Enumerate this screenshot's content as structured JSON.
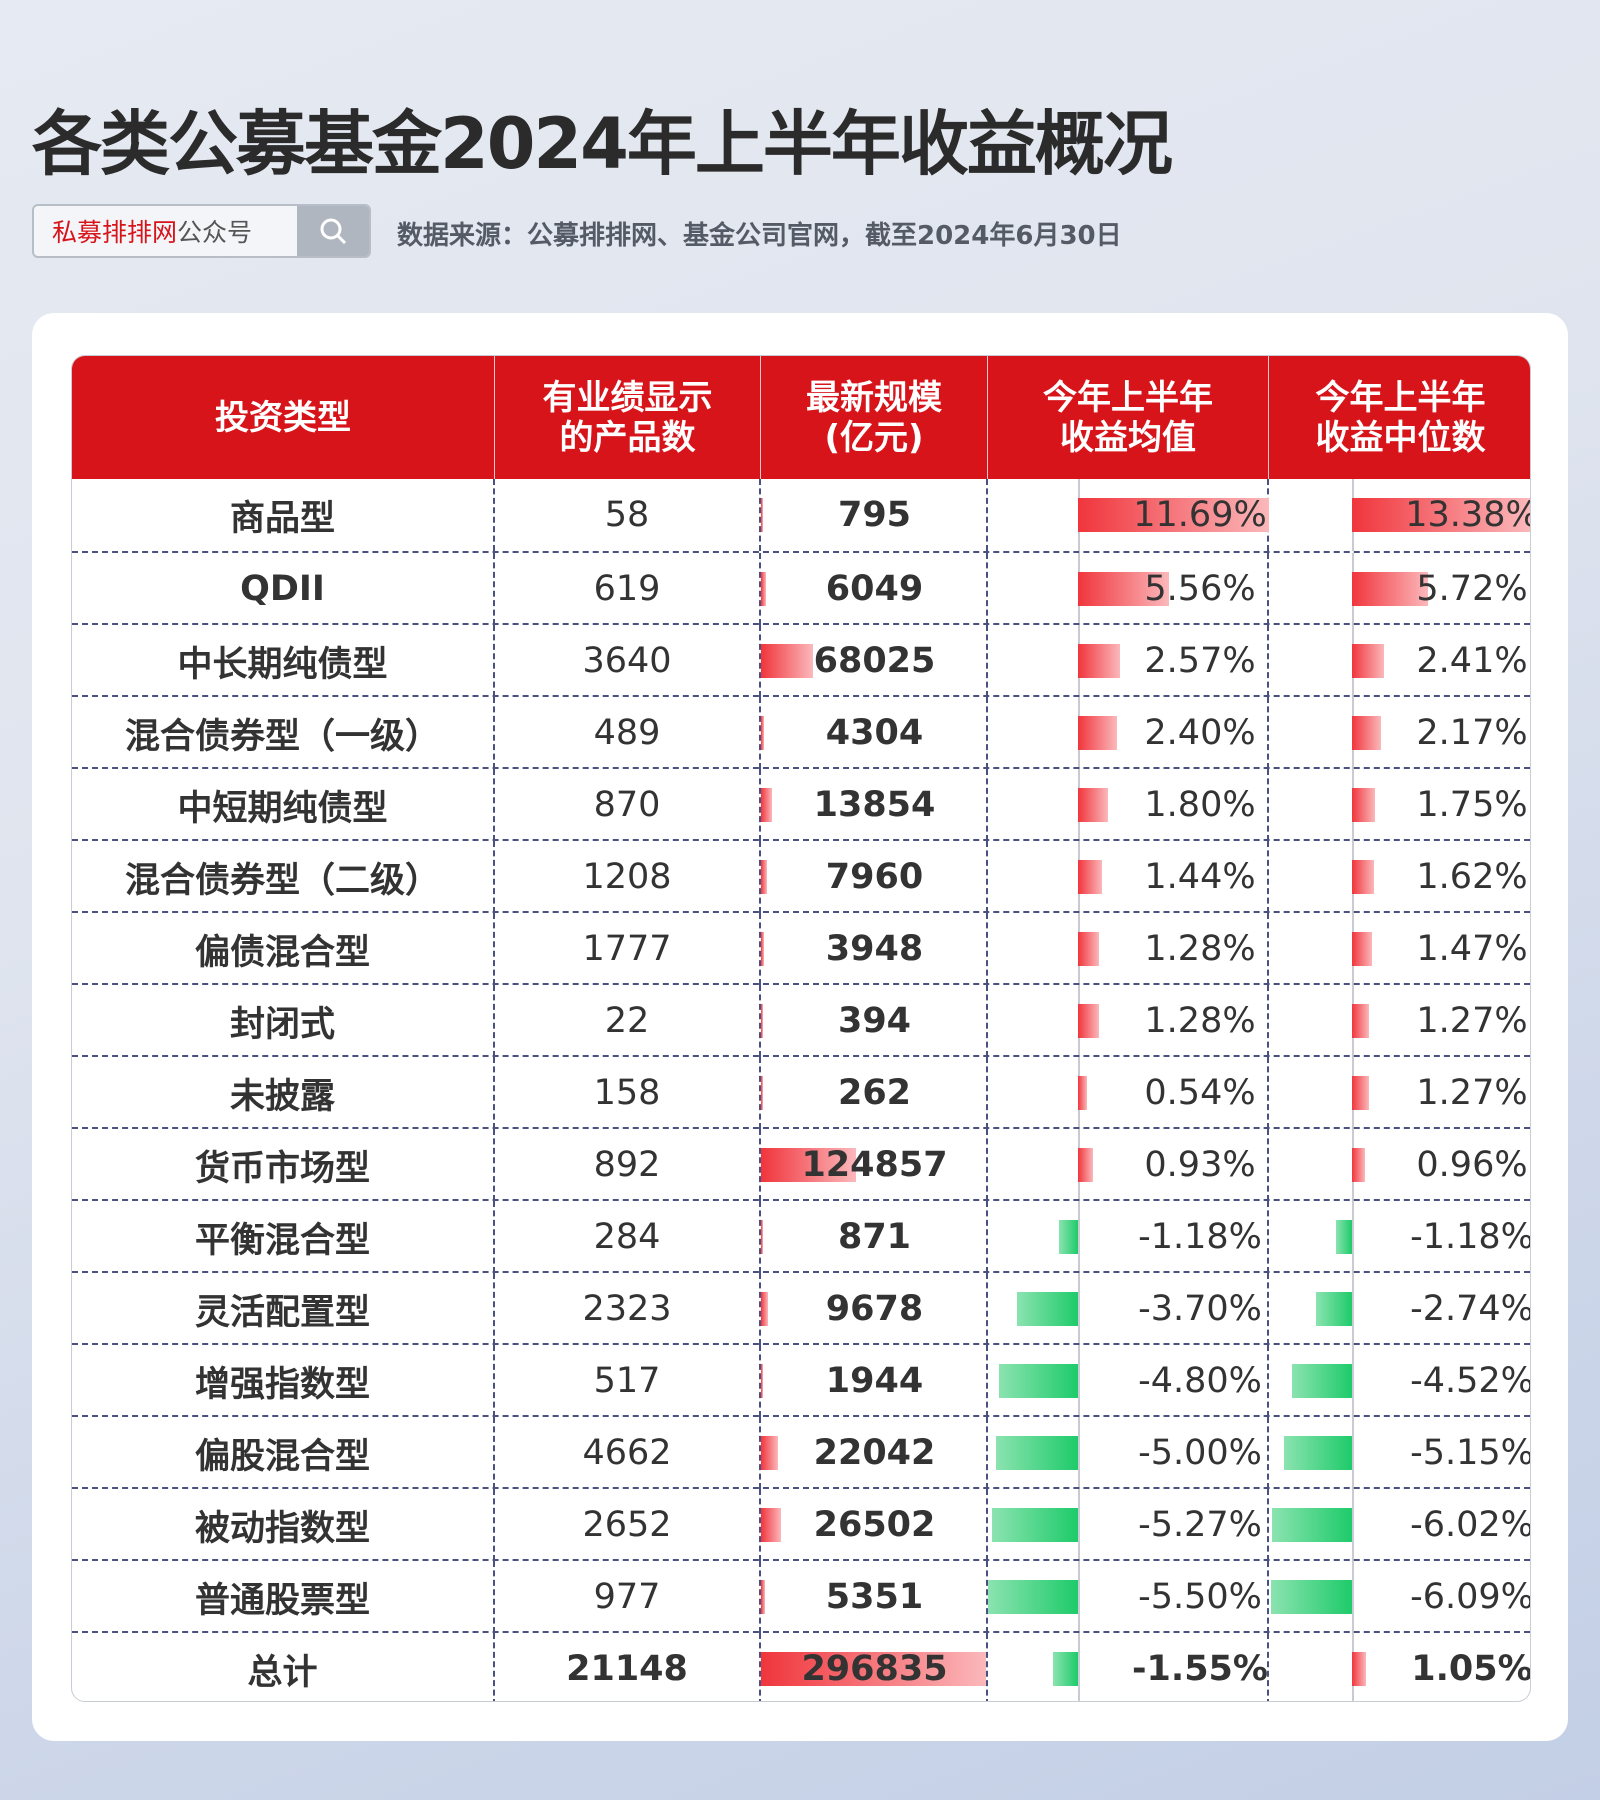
{
  "title": "各类公募基金2024年上半年收益概况",
  "search": {
    "brand": "私募排排网",
    "suffix": "公众号",
    "icon": "search-icon"
  },
  "source": "数据来源：公募排排网、基金公司官网，截至2024年6月30日",
  "colors": {
    "header": "#d7141a",
    "positive": "#f0353c",
    "negative": "#1ecb6a"
  },
  "table": {
    "headers": [
      "投资类型",
      "有业绩显示\n的产品数",
      "最新规模\n(亿元)",
      "今年上半年\n收益均值",
      "今年上半年\n收益中位数"
    ],
    "rows": [
      {
        "type": "商品型",
        "count": "58",
        "scale": "795",
        "mean": "11.69%",
        "median": "13.38%"
      },
      {
        "type": "QDII",
        "count": "619",
        "scale": "6049",
        "mean": "5.56%",
        "median": "5.72%"
      },
      {
        "type": "中长期纯债型",
        "count": "3640",
        "scale": "68025",
        "mean": "2.57%",
        "median": "2.41%"
      },
      {
        "type": "混合债券型（一级）",
        "count": "489",
        "scale": "4304",
        "mean": "2.40%",
        "median": "2.17%"
      },
      {
        "type": "中短期纯债型",
        "count": "870",
        "scale": "13854",
        "mean": "1.80%",
        "median": "1.75%"
      },
      {
        "type": "混合债券型（二级）",
        "count": "1208",
        "scale": "7960",
        "mean": "1.44%",
        "median": "1.62%"
      },
      {
        "type": "偏债混合型",
        "count": "1777",
        "scale": "3948",
        "mean": "1.28%",
        "median": "1.47%"
      },
      {
        "type": "封闭式",
        "count": "22",
        "scale": "394",
        "mean": "1.28%",
        "median": "1.27%"
      },
      {
        "type": "未披露",
        "count": "158",
        "scale": "262",
        "mean": "0.54%",
        "median": "1.27%"
      },
      {
        "type": "货币市场型",
        "count": "892",
        "scale": "124857",
        "mean": "0.93%",
        "median": "0.96%"
      },
      {
        "type": "平衡混合型",
        "count": "284",
        "scale": "871",
        "mean": "-1.18%",
        "median": "-1.18%"
      },
      {
        "type": "灵活配置型",
        "count": "2323",
        "scale": "9678",
        "mean": "-3.70%",
        "median": "-2.74%"
      },
      {
        "type": "增强指数型",
        "count": "517",
        "scale": "1944",
        "mean": "-4.80%",
        "median": "-4.52%"
      },
      {
        "type": "偏股混合型",
        "count": "4662",
        "scale": "22042",
        "mean": "-5.00%",
        "median": "-5.15%"
      },
      {
        "type": "被动指数型",
        "count": "2652",
        "scale": "26502",
        "mean": "-5.27%",
        "median": "-6.02%"
      },
      {
        "type": "普通股票型",
        "count": "977",
        "scale": "5351",
        "mean": "-5.50%",
        "median": "-6.09%"
      },
      {
        "type": "总计",
        "count": "21148",
        "scale": "296835",
        "mean": "-1.55%",
        "median": "1.05%"
      }
    ]
  }
}
